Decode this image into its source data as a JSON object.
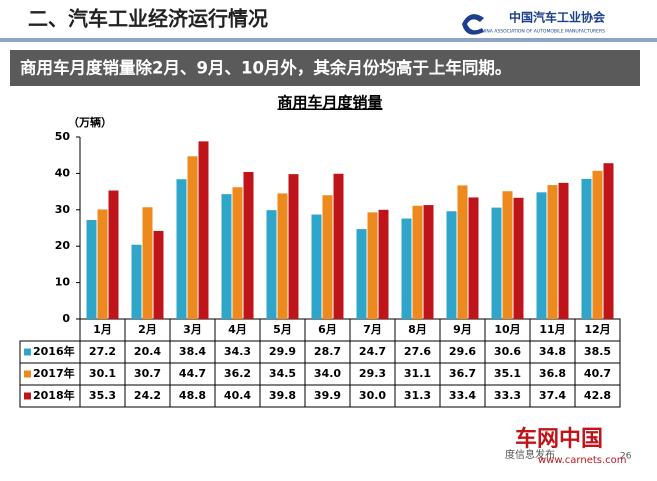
{
  "header": {
    "title": "二、汽车工业经济运行情况",
    "logo": "中国汽车工业协会",
    "logo_en": "CHINA ASSOCIATION OF AUTOMOBILE MANUFACTURERS"
  },
  "banner": "商用车月度销量除2月、9月、10月外，其余月份均高于上年同期。",
  "chart_data": {
    "type": "bar",
    "title": "商用车月度销量",
    "y_label": "（万辆）",
    "categories": [
      "1月",
      "2月",
      "3月",
      "4月",
      "5月",
      "6月",
      "7月",
      "8月",
      "9月",
      "10月",
      "11月",
      "12月"
    ],
    "series": [
      {
        "name": "2016年",
        "color": "#2fa6c9",
        "values": [
          27.2,
          20.4,
          38.4,
          34.3,
          29.9,
          28.7,
          24.7,
          27.6,
          29.6,
          30.6,
          34.8,
          38.5
        ],
        "value_labels": [
          "27.2",
          "20.4",
          "38.4",
          "34.3",
          "29.9",
          "28.7",
          "24.7",
          "27.6",
          "29.6",
          "30.6",
          "34.8",
          "38.5"
        ]
      },
      {
        "name": "2017年",
        "color": "#ee8a1d",
        "values": [
          30.1,
          30.7,
          44.7,
          36.2,
          34.5,
          34.0,
          29.3,
          31.1,
          36.7,
          35.1,
          36.8,
          40.7
        ],
        "value_labels": [
          "30.1",
          "30.7",
          "44.7",
          "36.2",
          "34.5",
          "34.0",
          "29.3",
          "31.1",
          "36.7",
          "35.1",
          "36.8",
          "40.7"
        ]
      },
      {
        "name": "2018年",
        "color": "#c0141b",
        "values": [
          35.3,
          24.2,
          48.8,
          40.4,
          39.8,
          39.9,
          30.0,
          31.3,
          33.4,
          33.3,
          37.4,
          42.8
        ],
        "value_labels": [
          "35.3",
          "24.2",
          "48.8",
          "40.4",
          "39.8",
          "39.9",
          "30.0",
          "31.3",
          "33.4",
          "33.3",
          "37.4",
          "42.8"
        ]
      }
    ],
    "ylim": [
      0,
      50
    ],
    "yticks": [
      0,
      10,
      20,
      30,
      40,
      50
    ],
    "grid": false
  },
  "footer": {
    "source": "度信息发布",
    "watermark": "车网中国",
    "url": "www.carnets.com",
    "page": "26"
  }
}
